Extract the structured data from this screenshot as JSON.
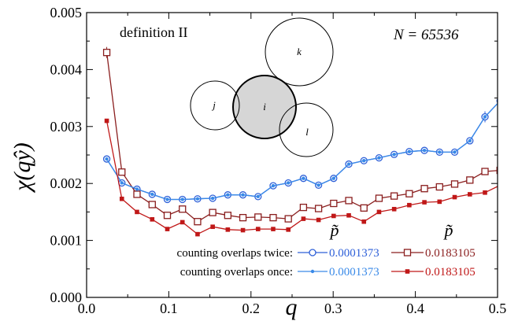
{
  "chart_data": {
    "type": "line",
    "xlabel": "q",
    "ylabel": "χ(qŷ)",
    "xlim": [
      0,
      0.5
    ],
    "ylim": [
      0,
      0.005
    ],
    "x_ticks": [
      "0.0",
      "0.1",
      "0.2",
      "0.3",
      "0.4",
      "0.5"
    ],
    "y_ticks": [
      "0.000",
      "0.001",
      "0.002",
      "0.003",
      "0.004",
      "0.005"
    ],
    "annotations": {
      "definition": "definition II",
      "system_size": "N = 65536",
      "circle_labels": [
        "j",
        "i",
        "k",
        "l"
      ]
    },
    "legend": {
      "p_header": "p̃",
      "twice_label": "counting overlaps twice:",
      "once_label": "counting overlaps once:",
      "placement": "bottom-right"
    },
    "x": [
      0.0245,
      0.0429,
      0.0613,
      0.0798,
      0.0982,
      0.1166,
      0.135,
      0.1534,
      0.1718,
      0.1902,
      0.2086,
      0.227,
      0.2454,
      0.2638,
      0.2822,
      0.3006,
      0.319,
      0.3374,
      0.3558,
      0.3742,
      0.3926,
      0.411,
      0.4294,
      0.4478,
      0.4663,
      0.4847,
      0.5031
    ],
    "series": [
      {
        "name": "0.0001373",
        "group": "twice",
        "color": "#2d5fd8",
        "marker": "open-circle",
        "values": [
          0.00243,
          0.00201,
          0.0019,
          0.00181,
          0.00172,
          0.00172,
          0.00173,
          0.00174,
          0.0018,
          0.0018,
          0.00177,
          0.00196,
          0.00201,
          0.00209,
          0.00197,
          0.00209,
          0.00234,
          0.0024,
          0.00245,
          0.00251,
          0.00256,
          0.00258,
          0.00255,
          0.00255,
          0.00275,
          0.00317,
          0.00345
        ]
      },
      {
        "name": "0.0183105",
        "group": "twice",
        "color": "#8a1e1e",
        "marker": "open-square",
        "values": [
          0.0043,
          0.0022,
          0.00181,
          0.00163,
          0.00144,
          0.00155,
          0.00133,
          0.00149,
          0.00144,
          0.0014,
          0.00141,
          0.0014,
          0.00138,
          0.00158,
          0.00156,
          0.00165,
          0.0017,
          0.00157,
          0.00174,
          0.00178,
          0.00182,
          0.00191,
          0.00194,
          0.00199,
          0.00206,
          0.00221,
          0.00223
        ]
      },
      {
        "name": "0.0001373",
        "group": "once",
        "color": "#3a8ae8",
        "marker": "filled-circle",
        "values": [
          0.00243,
          0.00201,
          0.0019,
          0.00181,
          0.00172,
          0.00172,
          0.00173,
          0.00174,
          0.0018,
          0.0018,
          0.00177,
          0.00196,
          0.00201,
          0.00209,
          0.00197,
          0.00209,
          0.00234,
          0.0024,
          0.00245,
          0.00251,
          0.00256,
          0.00258,
          0.00255,
          0.00255,
          0.00275,
          0.00317,
          0.00345
        ]
      },
      {
        "name": "0.0183105",
        "group": "once",
        "color": "#c01818",
        "marker": "filled-square",
        "values": [
          0.0031,
          0.00173,
          0.0015,
          0.00137,
          0.0012,
          0.00132,
          0.00111,
          0.00124,
          0.00119,
          0.00118,
          0.0012,
          0.0012,
          0.00119,
          0.00138,
          0.00136,
          0.00143,
          0.00144,
          0.00133,
          0.0015,
          0.00155,
          0.00162,
          0.00167,
          0.00168,
          0.00176,
          0.00181,
          0.00184,
          0.00197
        ]
      }
    ]
  }
}
